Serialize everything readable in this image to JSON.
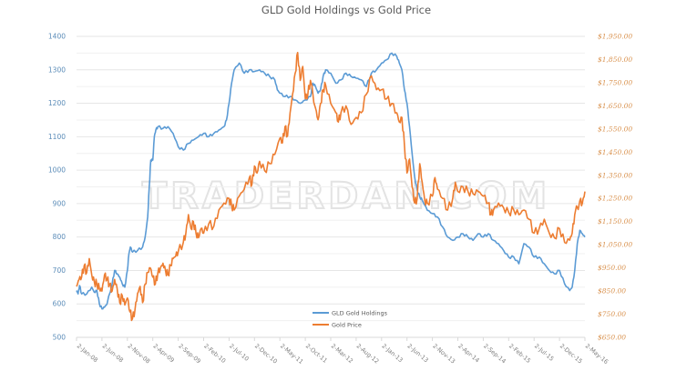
{
  "chart_data": {
    "type": "line",
    "title": "GLD Gold Holdings vs Gold Price",
    "watermark": "TRADERDAN.COM",
    "xlabel": "",
    "ylabel_left": "",
    "ylabel_right": "",
    "x_tick_labels": [
      "2-Jan-08",
      "2-Jun-08",
      "2-Nov-08",
      "2-Apr-09",
      "2-Sep-09",
      "2-Feb-10",
      "2-Jul-10",
      "2-Dec-10",
      "2-May-11",
      "2-Oct-11",
      "2-Mar-12",
      "2-Aug-12",
      "2-Jan-13",
      "2-Jun-13",
      "2-Nov-13",
      "2-Apr-14",
      "2-Sep-14",
      "2-Feb-15",
      "2-Jul-15",
      "2-Dec-15",
      "2-May-16"
    ],
    "y_left": {
      "min": 500,
      "max": 1400,
      "step": 100,
      "tick_labels": [
        "500",
        "600",
        "700",
        "800",
        "900",
        "1000",
        "1100",
        "1200",
        "1300",
        "1400"
      ],
      "color": "#5b9bd5"
    },
    "y_right": {
      "min": 650,
      "max": 1950,
      "step": 100,
      "tick_labels": [
        "$650.00",
        "$750.00",
        "$850.00",
        "$950.00",
        "$1,050.00",
        "$1,150.00",
        "$1,250.00",
        "$1,350.00",
        "$1,450.00",
        "$1,550.00",
        "$1,650.00",
        "$1,750.00",
        "$1,850.00",
        "$1,950.00"
      ],
      "color": "#ed7d31"
    },
    "grid": true,
    "legend": {
      "position": "bottom-center",
      "entries": [
        "GLD Gold Holdings",
        "Gold Price"
      ]
    },
    "x_range_months": [
      0,
      100
    ],
    "series": [
      {
        "name": "GLD Gold Holdings",
        "axis": "left",
        "color": "#5b9bd5",
        "points": [
          [
            0,
            640
          ],
          [
            0.3,
            630
          ],
          [
            0.6,
            655
          ],
          [
            1,
            630
          ],
          [
            2,
            630
          ],
          [
            3,
            650
          ],
          [
            3.5,
            635
          ],
          [
            4,
            640
          ],
          [
            4.5,
            600
          ],
          [
            5,
            585
          ],
          [
            5.5,
            590
          ],
          [
            6,
            600
          ],
          [
            7,
            660
          ],
          [
            7.5,
            700
          ],
          [
            8,
            690
          ],
          [
            8.5,
            680
          ],
          [
            9,
            660
          ],
          [
            9.5,
            650
          ],
          [
            10,
            700
          ],
          [
            10.3,
            750
          ],
          [
            10.6,
            770
          ],
          [
            11,
            755
          ],
          [
            12,
            760
          ],
          [
            13,
            770
          ],
          [
            13.5,
            800
          ],
          [
            14,
            860
          ],
          [
            14.3,
            950
          ],
          [
            14.6,
            1030
          ],
          [
            15,
            1030
          ],
          [
            15.3,
            1100
          ],
          [
            15.6,
            1120
          ],
          [
            16,
            1130
          ],
          [
            17,
            1125
          ],
          [
            18,
            1130
          ],
          [
            19,
            1110
          ],
          [
            20,
            1070
          ],
          [
            21,
            1060
          ],
          [
            22,
            1080
          ],
          [
            23,
            1090
          ],
          [
            24,
            1100
          ],
          [
            25,
            1110
          ],
          [
            26,
            1100
          ],
          [
            27,
            1110
          ],
          [
            28,
            1120
          ],
          [
            29,
            1130
          ],
          [
            29.5,
            1150
          ],
          [
            30,
            1200
          ],
          [
            30.5,
            1260
          ],
          [
            31,
            1300
          ],
          [
            32,
            1320
          ],
          [
            33,
            1290
          ],
          [
            34,
            1300
          ],
          [
            35,
            1295
          ],
          [
            36,
            1300
          ],
          [
            37,
            1290
          ],
          [
            38,
            1280
          ],
          [
            39,
            1270
          ],
          [
            39.5,
            1240
          ],
          [
            40,
            1230
          ],
          [
            41,
            1220
          ],
          [
            42,
            1220
          ],
          [
            43,
            1210
          ],
          [
            44,
            1200
          ],
          [
            45,
            1210
          ],
          [
            46,
            1220
          ],
          [
            46.5,
            1260
          ],
          [
            47,
            1250
          ],
          [
            47.5,
            1230
          ],
          [
            48,
            1240
          ],
          [
            48.5,
            1280
          ],
          [
            49,
            1300
          ],
          [
            50,
            1290
          ],
          [
            51,
            1260
          ],
          [
            52,
            1270
          ],
          [
            53,
            1290
          ],
          [
            54,
            1280
          ],
          [
            55,
            1275
          ],
          [
            56,
            1270
          ],
          [
            57,
            1250
          ],
          [
            58,
            1290
          ],
          [
            59,
            1300
          ],
          [
            60,
            1320
          ],
          [
            61,
            1330
          ],
          [
            62,
            1350
          ],
          [
            63,
            1340
          ],
          [
            63.5,
            1320
          ],
          [
            64,
            1300
          ],
          [
            64.5,
            1240
          ],
          [
            65,
            1200
          ],
          [
            65.5,
            1130
          ],
          [
            66,
            1050
          ],
          [
            66.5,
            980
          ],
          [
            67,
            940
          ],
          [
            67.5,
            920
          ],
          [
            68,
            910
          ],
          [
            69,
            880
          ],
          [
            70,
            870
          ],
          [
            71,
            860
          ],
          [
            72,
            830
          ],
          [
            73,
            800
          ],
          [
            74,
            790
          ],
          [
            75,
            800
          ],
          [
            76,
            810
          ],
          [
            77,
            800
          ],
          [
            78,
            790
          ],
          [
            79,
            810
          ],
          [
            80,
            800
          ],
          [
            81,
            810
          ],
          [
            82,
            790
          ],
          [
            83,
            780
          ],
          [
            84,
            760
          ],
          [
            85,
            740
          ],
          [
            86,
            740
          ],
          [
            87,
            720
          ],
          [
            88,
            780
          ],
          [
            89,
            770
          ],
          [
            90,
            740
          ],
          [
            91,
            740
          ],
          [
            92,
            720
          ],
          [
            93,
            700
          ],
          [
            94,
            690
          ],
          [
            95,
            700
          ],
          [
            96,
            660
          ],
          [
            97,
            640
          ],
          [
            97.5,
            650
          ],
          [
            98,
            700
          ],
          [
            98.5,
            780
          ],
          [
            99,
            820
          ],
          [
            99.5,
            810
          ],
          [
            100,
            800
          ]
        ]
      },
      {
        "name": "Gold Price",
        "axis": "right",
        "color": "#ed7d31",
        "points": [
          [
            0,
            870
          ],
          [
            0.5,
            900
          ],
          [
            1,
            910
          ],
          [
            1.5,
            960
          ],
          [
            2,
            930
          ],
          [
            2.5,
            990
          ],
          [
            3,
            920
          ],
          [
            3.5,
            890
          ],
          [
            4,
            880
          ],
          [
            4.5,
            860
          ],
          [
            5,
            850
          ],
          [
            5.5,
            920
          ],
          [
            6,
            900
          ],
          [
            6.5,
            880
          ],
          [
            7,
            850
          ],
          [
            7.5,
            900
          ],
          [
            8,
            860
          ],
          [
            8.5,
            800
          ],
          [
            9,
            830
          ],
          [
            9.5,
            790
          ],
          [
            10,
            820
          ],
          [
            10.5,
            760
          ],
          [
            11,
            730
          ],
          [
            11.5,
            770
          ],
          [
            12,
            840
          ],
          [
            12.5,
            870
          ],
          [
            13,
            800
          ],
          [
            13.5,
            880
          ],
          [
            14,
            930
          ],
          [
            14.5,
            950
          ],
          [
            15,
            910
          ],
          [
            15.5,
            880
          ],
          [
            16,
            930
          ],
          [
            16.5,
            950
          ],
          [
            17,
            970
          ],
          [
            17.5,
            940
          ],
          [
            18,
            920
          ],
          [
            18.5,
            960
          ],
          [
            19,
            990
          ],
          [
            19.5,
            1000
          ],
          [
            20,
            1020
          ],
          [
            21,
            1060
          ],
          [
            21.5,
            1100
          ],
          [
            22,
            1180
          ],
          [
            22.5,
            1120
          ],
          [
            23,
            1150
          ],
          [
            23.5,
            1100
          ],
          [
            24,
            1080
          ],
          [
            24.5,
            1120
          ],
          [
            25,
            1100
          ],
          [
            26,
            1140
          ],
          [
            27,
            1130
          ],
          [
            28,
            1200
          ],
          [
            29,
            1230
          ],
          [
            30,
            1250
          ],
          [
            30.5,
            1220
          ],
          [
            31,
            1200
          ],
          [
            32,
            1260
          ],
          [
            33,
            1290
          ],
          [
            34,
            1340
          ],
          [
            34.5,
            1310
          ],
          [
            35,
            1390
          ],
          [
            35.5,
            1360
          ],
          [
            36,
            1410
          ],
          [
            37,
            1370
          ],
          [
            38,
            1400
          ],
          [
            39,
            1440
          ],
          [
            40,
            1510
          ],
          [
            40.5,
            1490
          ],
          [
            41,
            1560
          ],
          [
            41.5,
            1520
          ],
          [
            42,
            1620
          ],
          [
            42.5,
            1700
          ],
          [
            43,
            1790
          ],
          [
            43.5,
            1880
          ],
          [
            44,
            1760
          ],
          [
            44.5,
            1820
          ],
          [
            45,
            1680
          ],
          [
            45.5,
            1700
          ],
          [
            46,
            1760
          ],
          [
            47,
            1640
          ],
          [
            47.5,
            1590
          ],
          [
            48,
            1660
          ],
          [
            48.5,
            1720
          ],
          [
            49,
            1740
          ],
          [
            50,
            1660
          ],
          [
            51,
            1620
          ],
          [
            51.5,
            1580
          ],
          [
            52,
            1620
          ],
          [
            53,
            1650
          ],
          [
            54,
            1570
          ],
          [
            55,
            1600
          ],
          [
            56,
            1620
          ],
          [
            57,
            1700
          ],
          [
            58,
            1780
          ],
          [
            59,
            1720
          ],
          [
            60,
            1720
          ],
          [
            61,
            1680
          ],
          [
            62,
            1660
          ],
          [
            63,
            1620
          ],
          [
            63.5,
            1580
          ],
          [
            64,
            1600
          ],
          [
            64.5,
            1480
          ],
          [
            65,
            1360
          ],
          [
            65.5,
            1420
          ],
          [
            66,
            1300
          ],
          [
            66.5,
            1230
          ],
          [
            67,
            1250
          ],
          [
            67.5,
            1400
          ],
          [
            68,
            1320
          ],
          [
            68.5,
            1240
          ],
          [
            69,
            1230
          ],
          [
            70,
            1260
          ],
          [
            70.5,
            1340
          ],
          [
            71,
            1290
          ],
          [
            72,
            1250
          ],
          [
            73,
            1200
          ],
          [
            74,
            1250
          ],
          [
            74.5,
            1320
          ],
          [
            75,
            1280
          ],
          [
            76,
            1300
          ],
          [
            77,
            1280
          ],
          [
            78,
            1270
          ],
          [
            79,
            1280
          ],
          [
            80,
            1260
          ],
          [
            81,
            1230
          ],
          [
            81.5,
            1180
          ],
          [
            82,
            1200
          ],
          [
            83,
            1230
          ],
          [
            84,
            1210
          ],
          [
            85,
            1190
          ],
          [
            86,
            1200
          ],
          [
            87,
            1180
          ],
          [
            88,
            1200
          ],
          [
            89,
            1160
          ],
          [
            90,
            1100
          ],
          [
            91,
            1120
          ],
          [
            92,
            1160
          ],
          [
            93,
            1100
          ],
          [
            94,
            1080
          ],
          [
            95,
            1120
          ],
          [
            96,
            1060
          ],
          [
            97,
            1070
          ],
          [
            97.5,
            1100
          ],
          [
            98,
            1180
          ],
          [
            99,
            1240
          ],
          [
            99.5,
            1230
          ],
          [
            100,
            1280
          ]
        ]
      }
    ]
  }
}
